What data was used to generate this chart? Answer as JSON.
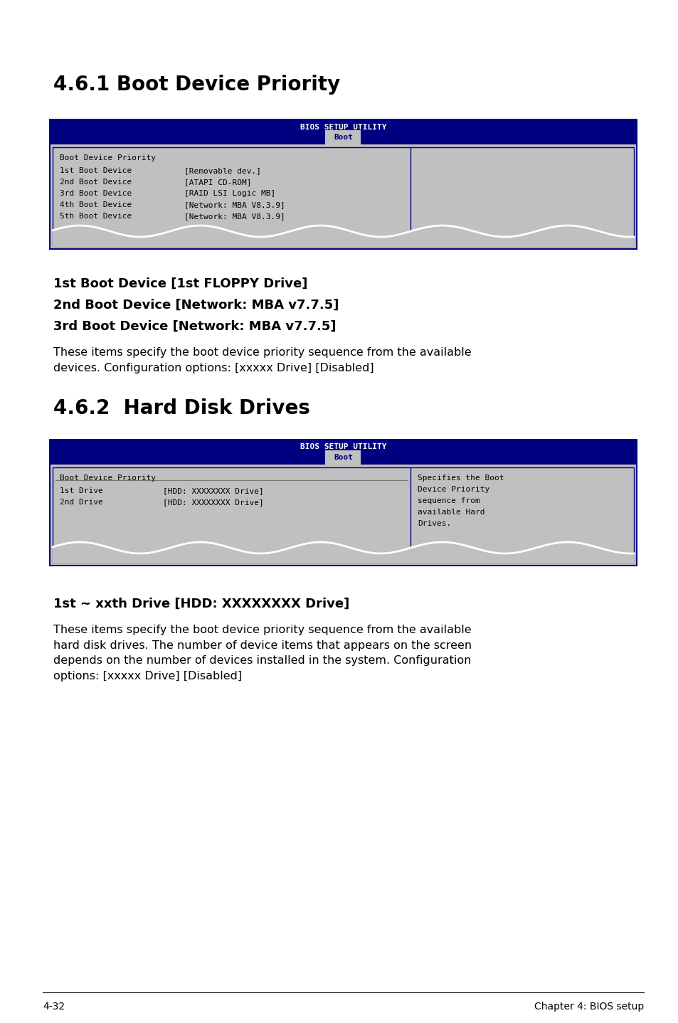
{
  "bg_color": "#ffffff",
  "bios_header_text": "BIOS SETUP UTILITY",
  "bios_tab_text": "Boot",
  "bios_header_bg": "#000080",
  "bios_tab_fg": "#000080",
  "bios_body_bg": "#c0c0c0",
  "bios_border": "#000080",
  "section1_title": "4.6.1 Boot Device Priority",
  "section2_title": "4.6.2  Hard Disk Drives",
  "screen1_title_line": "Boot Device Priority",
  "screen1_rows": [
    [
      "1st Boot Device",
      "[Removable dev.]"
    ],
    [
      "2nd Boot Device",
      "[ATAPI CD-ROM]"
    ],
    [
      "3rd Boot Device",
      "[RAID LSI Logic MB]"
    ],
    [
      "4th Boot Device",
      "[Network: MBA V8.3.9]"
    ],
    [
      "5th Boot Device",
      "[Network: MBA V8.3.9]"
    ]
  ],
  "screen2_title_line": "Boot Device Priority",
  "screen2_rows": [
    [
      "1st Drive",
      "[HDD: XXXXXXXX Drive]"
    ],
    [
      "2nd Drive",
      "[HDD: XXXXXXXX Drive]"
    ]
  ],
  "screen2_help_lines": [
    "Specifies the Boot",
    "Device Priority",
    "sequence from",
    "available Hard",
    "Drives."
  ],
  "subhead1_lines": [
    "1st Boot Device [1st FLOPPY Drive]",
    "2nd Boot Device [Network: MBA v7.7.5]",
    "3rd Boot Device [Network: MBA v7.7.5]"
  ],
  "subhead1_body": "These items specify the boot device priority sequence from the available\ndevices. Configuration options: [xxxxx Drive] [Disabled]",
  "subhead2_title": "1st ~ xxth Drive [HDD: XXXXXXXX Drive]",
  "subhead2_body": "These items specify the boot device priority sequence from the available\nhard disk drives. The number of device items that appears on the screen\ndepends on the number of devices installed in the system. Configuration\noptions: [xxxxx Drive] [Disabled]",
  "footer_left": "4-32",
  "footer_right": "Chapter 4: BIOS setup"
}
